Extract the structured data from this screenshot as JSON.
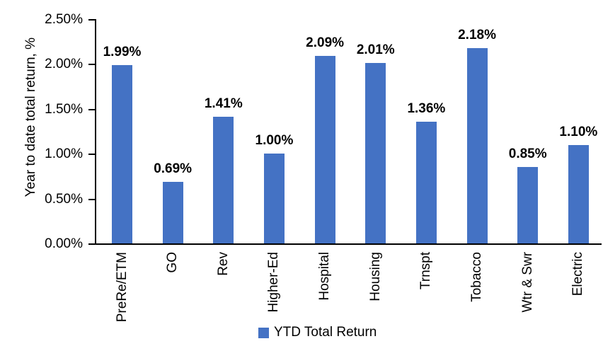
{
  "chart_data": {
    "type": "bar",
    "title": "",
    "ylabel": "Year to date total return, %",
    "xlabel": "",
    "categories": [
      "PreRe/ETM",
      "GO",
      "Rev",
      "Higher-Ed",
      "Hospital",
      "Housing",
      "Trnspt",
      "Tobacco",
      "Wtr & Swr",
      "Electric"
    ],
    "series": [
      {
        "name": "YTD Total Return",
        "values": [
          1.99,
          0.69,
          1.41,
          1.0,
          2.09,
          2.01,
          1.36,
          2.18,
          0.85,
          1.1
        ]
      }
    ],
    "data_labels": [
      "1.99%",
      "0.69%",
      "1.41%",
      "1.00%",
      "2.09%",
      "2.01%",
      "1.36%",
      "2.18%",
      "0.85%",
      "1.10%"
    ],
    "ylim": [
      0,
      2.5
    ],
    "ytick_step": 0.5,
    "ytick_labels": [
      "0.00%",
      "0.50%",
      "1.00%",
      "1.50%",
      "2.00%",
      "2.50%"
    ],
    "grid": false,
    "legend_position": "bottom",
    "legend": [
      {
        "label": "YTD Total Return",
        "color": "#4472C4"
      }
    ],
    "bar_color": "#4472C4",
    "axis_color": "#000000",
    "text_color": "#000000"
  }
}
